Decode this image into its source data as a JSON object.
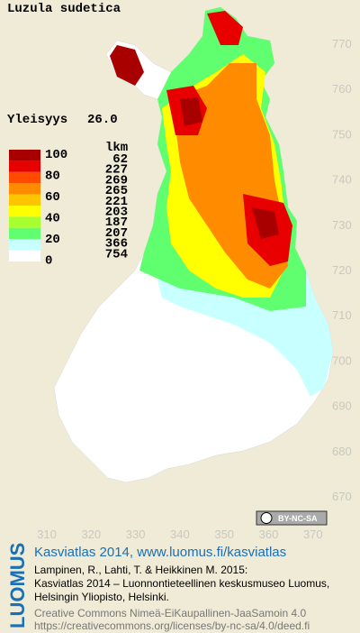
{
  "title": "Luzula sudetica",
  "frequency": {
    "label": "Yleisyys",
    "value": "26.0"
  },
  "legend": {
    "scale_labels": [
      "100",
      "80",
      "60",
      "40",
      "20",
      "0"
    ],
    "count_header": "lkm",
    "counts": [
      62,
      227,
      269,
      265,
      221,
      203,
      187,
      207,
      366,
      754
    ],
    "colors": [
      "#a80000",
      "#e80000",
      "#ff4a00",
      "#ff8c00",
      "#ffc400",
      "#ffff00",
      "#a8ff30",
      "#60ff70",
      "#c8ffff",
      "#ffffff"
    ]
  },
  "x_axis": [
    310,
    320,
    330,
    340,
    350,
    360,
    370
  ],
  "y_axis": [
    770,
    760,
    750,
    740,
    730,
    720,
    710,
    700,
    690,
    680,
    670
  ],
  "license_badge": "BY-NC-SA",
  "logo": "LUOMUS",
  "footer": {
    "heading": "Kasviatlas 2014, www.luomus.fi/kasviatlas",
    "citation": [
      "Lampinen, R., Lahti, T. & Heikkinen M. 2015:",
      "Kasviatlas 2014 – Luonnontieteellinen keskusmuseo Luomus,",
      "Helsingin Yliopisto, Helsinki."
    ],
    "license": [
      "Creative Commons Nimeä-EiKaupallinen-JaaSamoin 4.0",
      "https://creativecommons.org/licenses/by-nc-sa/4.0/deed.fi"
    ]
  }
}
